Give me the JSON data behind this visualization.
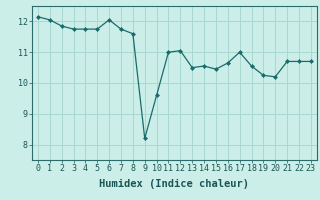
{
  "x": [
    0,
    1,
    2,
    3,
    4,
    5,
    6,
    7,
    8,
    9,
    10,
    11,
    12,
    13,
    14,
    15,
    16,
    17,
    18,
    19,
    20,
    21,
    22,
    23
  ],
  "y": [
    12.15,
    12.05,
    11.85,
    11.75,
    11.75,
    11.75,
    12.05,
    11.75,
    11.6,
    8.2,
    9.6,
    11.0,
    11.05,
    10.5,
    10.55,
    10.45,
    10.65,
    11.0,
    10.55,
    10.25,
    10.2,
    10.7,
    10.7,
    10.7
  ],
  "line_color": "#1a6b6b",
  "marker": "D",
  "marker_size": 2,
  "bg_color": "#cceee8",
  "grid_color": "#a8d8d0",
  "xlabel": "Humidex (Indice chaleur)",
  "xlim": [
    -0.5,
    23.5
  ],
  "ylim": [
    7.5,
    12.5
  ],
  "yticks": [
    8,
    9,
    10,
    11,
    12
  ],
  "xticks": [
    0,
    1,
    2,
    3,
    4,
    5,
    6,
    7,
    8,
    9,
    10,
    11,
    12,
    13,
    14,
    15,
    16,
    17,
    18,
    19,
    20,
    21,
    22,
    23
  ],
  "tick_fontsize": 6,
  "xlabel_fontsize": 7.5,
  "axis_color": "#2c6b6b",
  "tick_color": "#1a5555"
}
